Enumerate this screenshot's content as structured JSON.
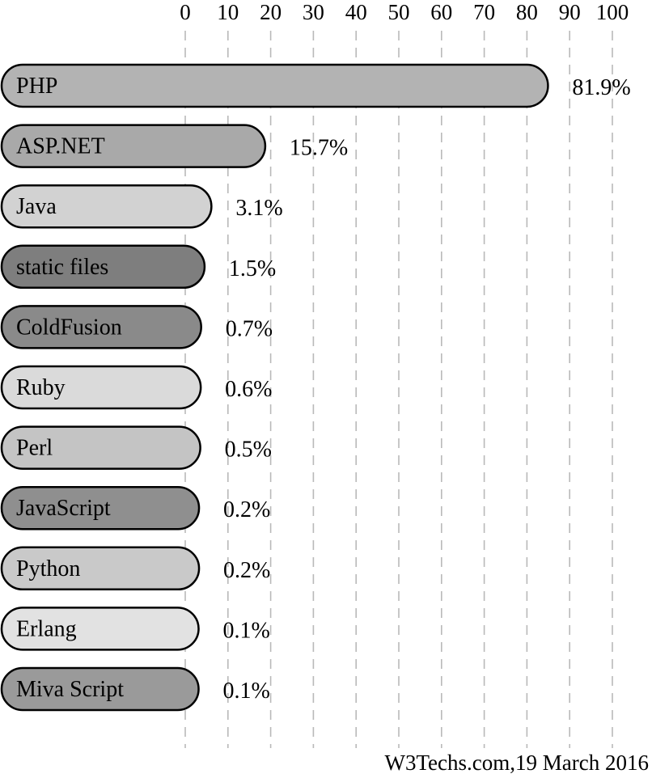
{
  "chart_data": {
    "type": "bar",
    "orientation": "horizontal",
    "categories": [
      "PHP",
      "ASP.NET",
      "Java",
      "static files",
      "ColdFusion",
      "Ruby",
      "Perl",
      "JavaScript",
      "Python",
      "Erlang",
      "Miva Script"
    ],
    "values": [
      81.9,
      15.7,
      3.1,
      1.5,
      0.7,
      0.6,
      0.5,
      0.2,
      0.2,
      0.1,
      0.1
    ],
    "value_labels": [
      "81.9%",
      "15.7%",
      "3.1%",
      "1.5%",
      "0.7%",
      "0.6%",
      "0.5%",
      "0.2%",
      "0.2%",
      "0.1%",
      "0.1%"
    ],
    "bar_colors": [
      "#b3b3b3",
      "#a9a9a9",
      "#d2d2d2",
      "#7e7e7e",
      "#8a8a8a",
      "#dadada",
      "#c4c4c4",
      "#8f8f8f",
      "#c9c9c9",
      "#e2e2e2",
      "#9a9a9a"
    ],
    "x_ticks": [
      "0",
      "10",
      "20",
      "30",
      "40",
      "50",
      "60",
      "70",
      "80",
      "90",
      "100"
    ],
    "xlim": [
      0,
      100
    ],
    "x_axis_position": "top",
    "grid": true,
    "grid_style": "dashed",
    "source": "W3Techs.com,19 March 2016"
  }
}
